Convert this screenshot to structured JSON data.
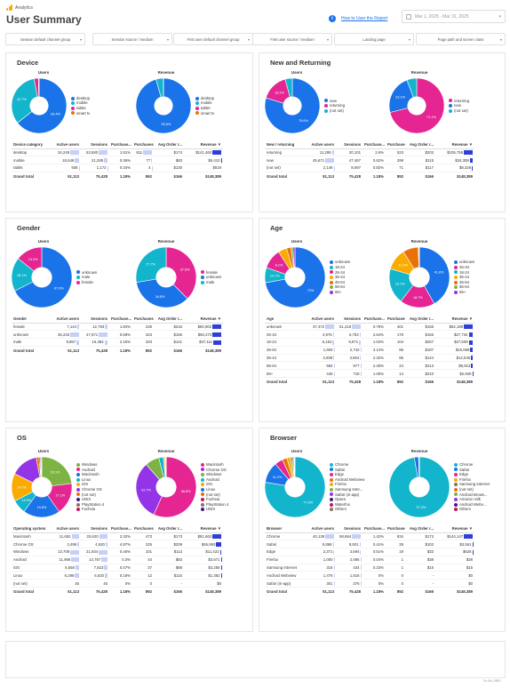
{
  "header": {
    "logo_text": "Analytics",
    "title": "User Summary",
    "help_link": "How to User the Report",
    "date_range": "Mar 1, 2025 - Mar 31, 2025"
  },
  "filters": [
    "Session default channel group",
    "Session source / medium",
    "First user default channel group",
    "First user source / medium",
    "Landing page",
    "Page path and screen class"
  ],
  "panels": [
    {
      "id": "device",
      "title": "Device",
      "users_title": "Users",
      "revenue_title": "Revenue",
      "users_pie": [
        {
          "label": "desktop",
          "value": 64.4,
          "color": "#1a73e8"
        },
        {
          "label": "mobile",
          "value": 32.7,
          "color": "#12b5cb"
        },
        {
          "label": "tablet",
          "value": 2.5,
          "color": "#e52592"
        },
        {
          "label": "smart tv",
          "value": 0.4,
          "color": "#e8710a"
        }
      ],
      "users_slice_labels": [
        "64.4%",
        "32.7%"
      ],
      "revenue_pie": [
        {
          "label": "desktop",
          "value": 95.6,
          "color": "#1a73e8"
        },
        {
          "label": "mobile",
          "value": 4.3,
          "color": "#12b5cb"
        },
        {
          "label": "tablet",
          "value": 0.1,
          "color": "#e52592"
        },
        {
          "label": "smart tv",
          "value": 0.0,
          "color": "#e8710a"
        }
      ],
      "revenue_slice_labels": [
        "95.6%"
      ],
      "columns": [
        "Device category",
        "Active users",
        "Sessions",
        "Purchase...",
        "Purchases",
        "Avg Order r...",
        "Revenue ▼"
      ],
      "rows": [
        [
          "desktop",
          "34,249",
          "53,580",
          "1.51%",
          "811",
          "$174",
          "$141,460"
        ],
        [
          "mobile",
          "16,549",
          "21,285",
          "0.36%",
          "77",
          "$83",
          "$6,410"
        ],
        [
          "tablet",
          "936",
          "1,172",
          "0.34%",
          "4",
          "$130",
          "$519"
        ]
      ],
      "bars": [
        [
          0.98,
          0.99,
          0,
          0.98,
          0,
          0.98
        ],
        [
          0.47,
          0.39,
          0,
          0.09,
          0,
          0.04
        ],
        [
          0.03,
          0.02,
          0,
          0.01,
          0,
          0.0
        ]
      ],
      "total": [
        "Grand total",
        "51,113",
        "75,428",
        "1.18%",
        "892",
        "$166",
        "$148,389"
      ]
    },
    {
      "id": "new-returning",
      "title": "New and Returning",
      "users_title": "Users",
      "revenue_title": "Revenue",
      "users_pie": [
        {
          "label": "new",
          "value": 79.6,
          "color": "#1a73e8"
        },
        {
          "label": "returning",
          "value": 16.2,
          "color": "#e52592"
        },
        {
          "label": "(not set)",
          "value": 4.2,
          "color": "#12b5cb"
        }
      ],
      "users_slice_labels": [
        "79.6%",
        "16.2%"
      ],
      "revenue_pie": [
        {
          "label": "returning",
          "value": 71.1,
          "color": "#e52592"
        },
        {
          "label": "new",
          "value": 23.1,
          "color": "#1a73e8"
        },
        {
          "label": "(not set)",
          "value": 5.8,
          "color": "#12b5cb"
        }
      ],
      "revenue_slice_labels": [
        "71.1%",
        "23.1%"
      ],
      "columns": [
        "New / returning",
        "Active users",
        "Sessions",
        "Purchase...",
        "Purchases",
        "Avg Order r...",
        "Revenue ▼"
      ],
      "rows": [
        [
          "returning",
          "11,285",
          "20,101",
          "2.6%",
          "523",
          "$203",
          "$105,755"
        ],
        [
          "new",
          "45,671",
          "47,467",
          "0.62%",
          "299",
          "$115",
          "$34,308"
        ],
        [
          "(not set)",
          "2,146",
          "8,697",
          "0.82%",
          "71",
          "$117",
          "$8,326"
        ]
      ],
      "bars": [
        [
          0.24,
          0,
          0,
          0,
          0,
          0.98
        ],
        [
          0.98,
          0,
          0,
          0,
          0,
          0.32
        ],
        [
          0.05,
          0,
          0,
          0,
          0,
          0.08
        ]
      ],
      "total": [
        "Grand total",
        "51,113",
        "75,428",
        "1.18%",
        "892",
        "$166",
        "$148,389"
      ]
    },
    {
      "id": "gender",
      "title": "Gender",
      "users_title": "Users",
      "revenue_title": "Revenue",
      "users_pie": [
        {
          "label": "unknown",
          "value": 67.6,
          "color": "#1a73e8"
        },
        {
          "label": "male",
          "value": 18.1,
          "color": "#12b5cb"
        },
        {
          "label": "female",
          "value": 14.3,
          "color": "#e52592"
        }
      ],
      "users_slice_labels": [
        "67.6%",
        "18.1%",
        "14.3%"
      ],
      "revenue_pie": [
        {
          "label": "female",
          "value": 37.5,
          "color": "#e52592"
        },
        {
          "label": "unknown",
          "value": 34.8,
          "color": "#1a73e8"
        },
        {
          "label": "male",
          "value": 27.7,
          "color": "#12b5cb"
        }
      ],
      "revenue_slice_labels": [
        "37.5%",
        "34.8%",
        "27.7%"
      ],
      "columns": [
        "Gender",
        "Active users",
        "Sessions",
        "Purchase...",
        "Purchases",
        "Avg Order r...",
        "Revenue ▼"
      ],
      "rows": [
        [
          "female",
          "7,144",
          "12,793",
          "1.84%",
          "236",
          "$216",
          "$50,902"
        ],
        [
          "unknown",
          "35,233",
          "47,571",
          "0.68%",
          "323",
          "$156",
          "$50,273"
        ],
        [
          "male",
          "9,857",
          "15,484",
          "2.15%",
          "333",
          "$141",
          "$47,111"
        ]
      ],
      "bars": [
        [
          0.2,
          0.27,
          0,
          0,
          0,
          0.98
        ],
        [
          0.98,
          0.98,
          0,
          0,
          0,
          0.97
        ],
        [
          0.28,
          0.33,
          0,
          0,
          0,
          0.9
        ]
      ],
      "total": [
        "Grand total",
        "51,113",
        "75,428",
        "1.18%",
        "892",
        "$166",
        "$148,389"
      ]
    },
    {
      "id": "age",
      "title": "Age",
      "users_title": "Users",
      "revenue_title": "Revenue",
      "users_pie": [
        {
          "label": "unknown",
          "value": 72.1,
          "color": "#1a73e8"
        },
        {
          "label": "18-24",
          "value": 8.1,
          "color": "#12b5cb"
        },
        {
          "label": "25-34",
          "value": 10.7,
          "color": "#e52592"
        },
        {
          "label": "35-44",
          "value": 4.6,
          "color": "#f9ab00"
        },
        {
          "label": "45-54",
          "value": 2.3,
          "color": "#e8710a"
        },
        {
          "label": "55-64",
          "value": 1.1,
          "color": "#7cb342"
        },
        {
          "label": "65+",
          "value": 1.1,
          "color": "#9334e6"
        }
      ],
      "users_slice_labels": [
        "72%",
        "10.7%",
        "8.1%"
      ],
      "revenue_pie": [
        {
          "label": "unknown",
          "value": 41.8,
          "color": "#1a73e8"
        },
        {
          "label": "25-34",
          "value": 18.7,
          "color": "#e52592"
        },
        {
          "label": "18-24",
          "value": 19.1,
          "color": "#12b5cb"
        },
        {
          "label": "35-44",
          "value": 11.5,
          "color": "#f9ab00"
        },
        {
          "label": "45-54",
          "value": 8.3,
          "color": "#e8710a"
        },
        {
          "label": "55-64",
          "value": 0.3,
          "color": "#7cb342"
        },
        {
          "label": "65+",
          "value": 0.3,
          "color": "#9334e6"
        }
      ],
      "revenue_slice_labels": [
        "41.8%",
        "18.7%",
        "19.1%",
        "11.5%"
      ],
      "columns": [
        "Age",
        "Active users",
        "Sessions",
        "Purchase...",
        "Purchases",
        "Avg Order r...",
        "Revenue ▼"
      ],
      "rows": [
        [
          "unknown",
          "37,372",
          "51,218",
          "0.78%",
          "401",
          "$155",
          "$62,189"
        ],
        [
          "25-34",
          "4,975",
          "6,753",
          "2.64%",
          "178",
          "$156",
          "$27,734"
        ],
        [
          "18-24",
          "6,152",
          "9,971",
          "1.04%",
          "104",
          "$267",
          "$27,509"
        ],
        [
          "45-54",
          "1,693",
          "2,742",
          "3.14%",
          "86",
          "$187",
          "$16,069"
        ],
        [
          "35-44",
          "2,608",
          "3,664",
          "2.32%",
          "85",
          "$144",
          "$12,045"
        ],
        [
          "55-64",
          "584",
          "977",
          "2.46%",
          "24",
          "$413",
          "$9,913"
        ],
        [
          "65+",
          "445",
          "718",
          "1.05%",
          "14",
          "$210",
          "$2,940"
        ]
      ],
      "bars": [
        [
          0.98,
          0.98,
          0,
          0,
          0,
          0.98
        ],
        [
          0.13,
          0.13,
          0,
          0,
          0,
          0.45
        ],
        [
          0.16,
          0.19,
          0,
          0,
          0,
          0.44
        ],
        [
          0.05,
          0.05,
          0,
          0,
          0,
          0.26
        ],
        [
          0.07,
          0.07,
          0,
          0,
          0,
          0.19
        ],
        [
          0.02,
          0.02,
          0,
          0,
          0,
          0.16
        ],
        [
          0.01,
          0.01,
          0,
          0,
          0,
          0.05
        ]
      ],
      "total": [
        "Grand total",
        "51,113",
        "75,428",
        "1.18%",
        "892",
        "$166",
        "$148,389"
      ]
    },
    {
      "id": "os",
      "title": "OS",
      "users_title": "Users",
      "revenue_title": "Revenue",
      "users_pie": [
        {
          "label": "Windows",
          "value": 23.1,
          "color": "#7cb342"
        },
        {
          "label": "Android",
          "value": 17.1,
          "color": "#e52592"
        },
        {
          "label": "Macintosh",
          "value": 19.8,
          "color": "#1a73e8"
        },
        {
          "label": "Linux",
          "value": 7.4,
          "color": "#12b5cb"
        },
        {
          "label": "iOS",
          "value": 14.9,
          "color": "#f9ab00"
        },
        {
          "label": "Chrome OS",
          "value": 14.7,
          "color": "#9334e6"
        },
        {
          "label": "(not set)",
          "value": 1.5,
          "color": "#e8710a"
        },
        {
          "label": "UNIX",
          "value": 0.6,
          "color": "#4a148c"
        },
        {
          "label": "PlayStation 4",
          "value": 0.5,
          "color": "#8d6e63"
        },
        {
          "label": "Fuchsia",
          "value": 0.4,
          "color": "#c2185b"
        }
      ],
      "users_slice_labels": [
        "23.1%",
        "17.1%",
        "19.8%",
        "14.9%",
        "14.7%"
      ],
      "revenue_pie": [
        {
          "label": "Macintosh",
          "value": 56.8,
          "color": "#e52592"
        },
        {
          "label": "Chrome OS",
          "value": 31.7,
          "color": "#9334e6"
        },
        {
          "label": "Windows",
          "value": 7.6,
          "color": "#7cb342"
        },
        {
          "label": "Android",
          "value": 2.4,
          "color": "#12b5cb"
        },
        {
          "label": "iOS",
          "value": 0.8,
          "color": "#f9ab00"
        },
        {
          "label": "Linux",
          "value": 0.4,
          "color": "#1a73e8"
        },
        {
          "label": "(not set)",
          "value": 0.2,
          "color": "#e8710a"
        },
        {
          "label": "Fuchsia",
          "value": 0.05,
          "color": "#c2185b"
        },
        {
          "label": "PlayStation 4",
          "value": 0.05,
          "color": "#8d6e63"
        },
        {
          "label": "UNIX",
          "value": 0.0,
          "color": "#4a148c"
        }
      ],
      "revenue_slice_labels": [
        "56.8%",
        "31.7%"
      ],
      "columns": [
        "Operating system",
        "Active users",
        "Sessions",
        "Purchase...",
        "Purchases",
        "Avg Order r...",
        "Revenue ▼"
      ],
      "rows": [
        [
          "Macintosh",
          "11,652",
          "20,620",
          "2.32%",
          "473",
          "$173",
          "$81,663"
        ],
        [
          "Chrome OS",
          "2,499",
          "4,530",
          "4.97%",
          "225",
          "$209",
          "$46,993"
        ],
        [
          "Windows",
          "13,708",
          "21,934",
          "0.46%",
          "101",
          "$113",
          "$11,422"
        ],
        [
          "Android",
          "11,958",
          "14,767",
          "0.3%",
          "44",
          "$83",
          "$3,671"
        ],
        [
          "iOS",
          "5,558",
          "7,823",
          "0.47%",
          "37",
          "$88",
          "$3,258"
        ],
        [
          "Linux",
          "6,298",
          "6,520",
          "0.18%",
          "12",
          "$115",
          "$1,382"
        ],
        [
          "(not set)",
          "45",
          "45",
          "0%",
          "0",
          "-",
          "$0"
        ]
      ],
      "bars": [
        [
          0.85,
          0.94,
          0,
          0,
          0,
          0.98
        ],
        [
          0.18,
          0.21,
          0,
          0,
          0,
          0.56
        ],
        [
          0.98,
          0.98,
          0,
          0,
          0,
          0.14
        ],
        [
          0.87,
          0.67,
          0,
          0,
          0,
          0.04
        ],
        [
          0.41,
          0.36,
          0,
          0,
          0,
          0.04
        ],
        [
          0.46,
          0.3,
          0,
          0,
          0,
          0.02
        ],
        [
          0,
          0,
          0,
          0,
          0,
          0
        ]
      ],
      "total": [
        "Grand total",
        "51,113",
        "75,428",
        "1.18%",
        "892",
        "$166",
        "$148,389"
      ]
    },
    {
      "id": "browser",
      "title": "Browser",
      "users_title": "Users",
      "revenue_title": "Revenue",
      "users_pie": [
        {
          "label": "Chrome",
          "value": 77.6,
          "color": "#12b5cb"
        },
        {
          "label": "Safari",
          "value": 11.2,
          "color": "#1a73e8"
        },
        {
          "label": "Edge",
          "value": 4.3,
          "color": "#e52592"
        },
        {
          "label": "Android Webview",
          "value": 2.6,
          "color": "#e8710a"
        },
        {
          "label": "Firefox",
          "value": 1.8,
          "color": "#f9ab00"
        },
        {
          "label": "Samsung Inter...",
          "value": 1.1,
          "color": "#7cb342"
        },
        {
          "label": "Safari (in-app)",
          "value": 0.6,
          "color": "#9334e6"
        },
        {
          "label": "Opera",
          "value": 0.4,
          "color": "#4a148c"
        },
        {
          "label": "Waterfox",
          "value": 0.2,
          "color": "#c2185b"
        },
        {
          "label": "Others",
          "value": 0.2,
          "color": "#8d6e63"
        }
      ],
      "users_slice_labels": [
        "77.6%",
        "11.2%"
      ],
      "revenue_pie": [
        {
          "label": "Chrome",
          "value": 97.3,
          "color": "#12b5cb"
        },
        {
          "label": "Safari",
          "value": 2.3,
          "color": "#1a73e8"
        },
        {
          "label": "Edge",
          "value": 0.3,
          "color": "#e52592"
        },
        {
          "label": "Firefox",
          "value": 0.1,
          "color": "#f9ab00"
        }
      ],
      "revenue_legend": [
        "Chrome",
        "Safari",
        "Edge",
        "Firefox",
        "Samsung Internet",
        "(not set)",
        "Android Brows...",
        "Amazon Silk",
        "Android Webv...",
        "Others"
      ],
      "revenue_slice_labels": [
        "97.3%"
      ],
      "columns": [
        "Browser",
        "Active users",
        "Sessions",
        "Purchase...",
        "Purchases",
        "Avg Order r...",
        "Revenue ▼"
      ],
      "rows": [
        [
          "Chrome",
          "40,139",
          "58,694",
          "1.42%",
          "834",
          "$173",
          "$144,147"
        ],
        [
          "Safari",
          "5,868",
          "8,501",
          "0.41%",
          "35",
          "$102",
          "$3,561"
        ],
        [
          "Edge",
          "2,371",
          "3,694",
          "0.51%",
          "19",
          "$33",
          "$628"
        ],
        [
          "Firefox",
          "1,000",
          "2,086",
          "0.04%",
          "1",
          "$38",
          "$38"
        ],
        [
          "Samsung Internet",
          "316",
          "434",
          "0.23%",
          "1",
          "$15",
          "$15"
        ],
        [
          "Android Webview",
          "1,475",
          "1,816",
          "0%",
          "0",
          "-",
          "$0"
        ],
        [
          "Safari (in-app)",
          "301",
          "376",
          "0%",
          "0",
          "-",
          "$0"
        ]
      ],
      "bars": [
        [
          0.98,
          0.98,
          0,
          0,
          0,
          0.98
        ],
        [
          0.15,
          0.14,
          0,
          0,
          0,
          0.03
        ],
        [
          0.06,
          0.06,
          0,
          0,
          0,
          0.01
        ],
        [
          0.03,
          0.04,
          0,
          0,
          0,
          0
        ],
        [
          0.01,
          0.01,
          0,
          0,
          0,
          0
        ],
        [
          0.04,
          0.03,
          0,
          0,
          0,
          0
        ],
        [
          0.01,
          0.01,
          0,
          0,
          0,
          0
        ]
      ],
      "total": [
        "Grand total",
        "51,113",
        "75,428",
        "1.18%",
        "892",
        "$166",
        "$148,389"
      ]
    }
  ],
  "footer_note": "Sc-WL-0560"
}
